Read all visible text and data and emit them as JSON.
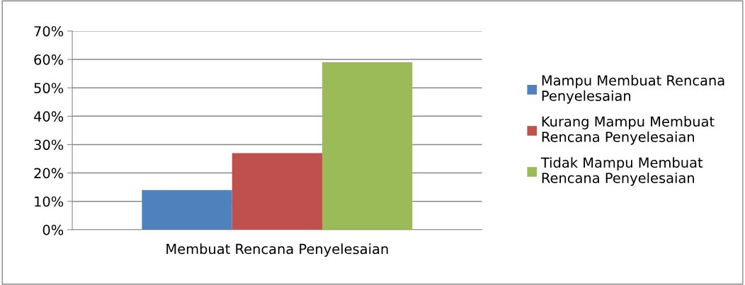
{
  "chart_data": {
    "type": "bar",
    "categories": [
      "Membuat Rencana Penyelesaian"
    ],
    "series": [
      {
        "name": "Mampu Membuat Rencana\nPenyelesaian",
        "color": "#4f81bd",
        "values": [
          14
        ]
      },
      {
        "name": "Kurang Mampu Membuat\nRencana Penyelesaian",
        "color": "#c0504d",
        "values": [
          27
        ]
      },
      {
        "name": "Tidak Mampu Membuat\nRencana Penyelesaian",
        "color": "#9bbb59",
        "values": [
          59
        ]
      }
    ],
    "ylim": [
      0,
      70
    ],
    "yticks": [
      {
        "value": 0,
        "label": "0%"
      },
      {
        "value": 10,
        "label": "10%"
      },
      {
        "value": 20,
        "label": "20%"
      },
      {
        "value": 30,
        "label": "30%"
      },
      {
        "value": 40,
        "label": "40%"
      },
      {
        "value": 50,
        "label": "50%"
      },
      {
        "value": 60,
        "label": "60%"
      },
      {
        "value": 70,
        "label": "70%"
      }
    ],
    "grid": "y",
    "legend": "right"
  }
}
